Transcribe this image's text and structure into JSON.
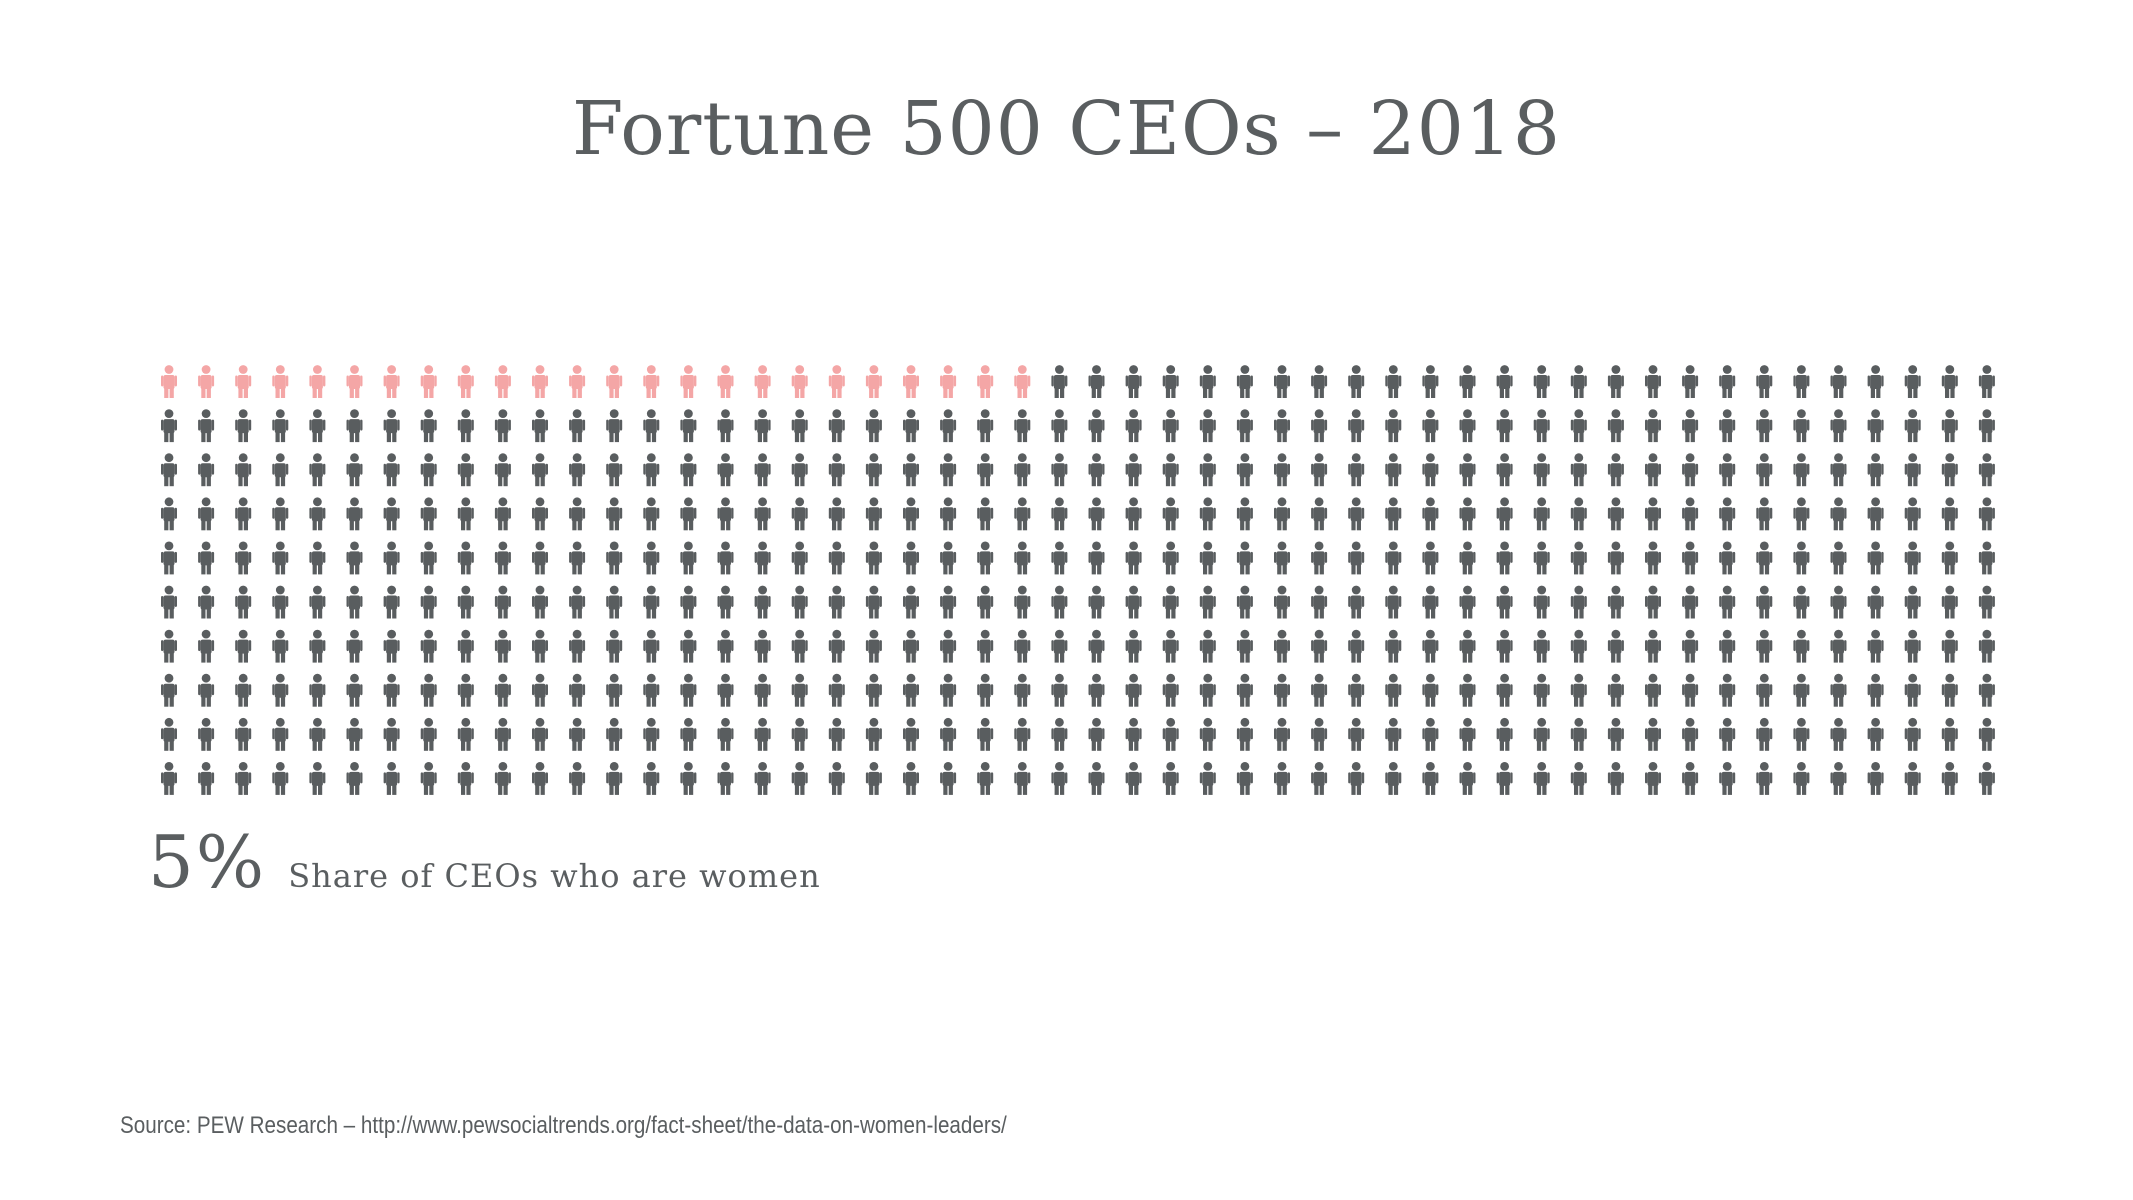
{
  "chart_data": {
    "type": "pictogram",
    "title": "Fortune 500 CEOs – 2018",
    "total": 500,
    "highlighted": 24,
    "grid": {
      "columns": 50,
      "rows": 10
    },
    "colors": {
      "highlighted": "#f4a6a6",
      "base": "#595d5f"
    },
    "icon": "person-icon",
    "stat": {
      "value": "5%",
      "label": "Share of CEOs who are women"
    },
    "source": "Source: PEW Research – http://www.pewsocialtrends.org/fact-sheet/the-data-on-women-leaders/"
  }
}
